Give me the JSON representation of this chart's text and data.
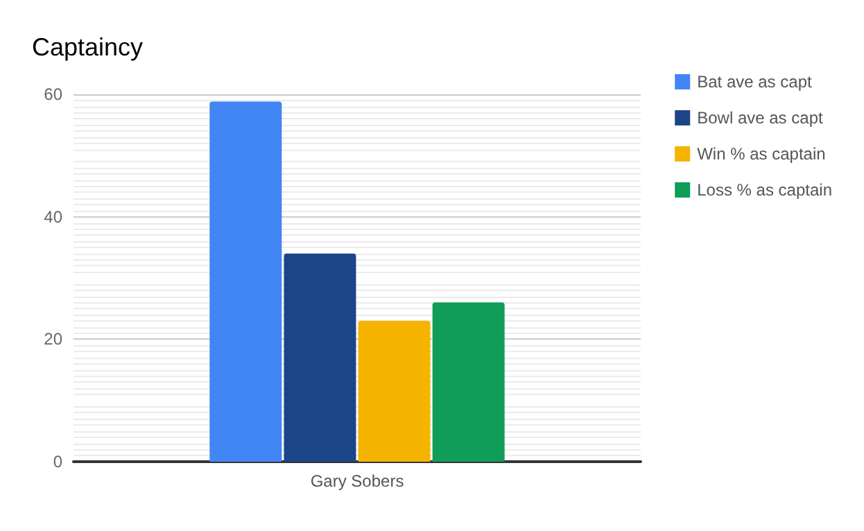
{
  "chart_data": {
    "type": "bar",
    "title": "Captaincy",
    "categories": [
      "Gary Sobers"
    ],
    "series": [
      {
        "name": "Bat ave as capt",
        "color": "#4285f4",
        "values": [
          58.8
        ]
      },
      {
        "name": "Bowl ave as capt",
        "color": "#1c4587",
        "values": [
          34
        ]
      },
      {
        "name": "Win % as captain",
        "color": "#f4b400",
        "values": [
          23
        ]
      },
      {
        "name": "Loss % as captain",
        "color": "#0f9d58",
        "values": [
          26
        ]
      }
    ],
    "ylim": [
      0,
      60
    ],
    "yticks": [
      0,
      20,
      40,
      60
    ],
    "grid": true,
    "legend": "right"
  }
}
